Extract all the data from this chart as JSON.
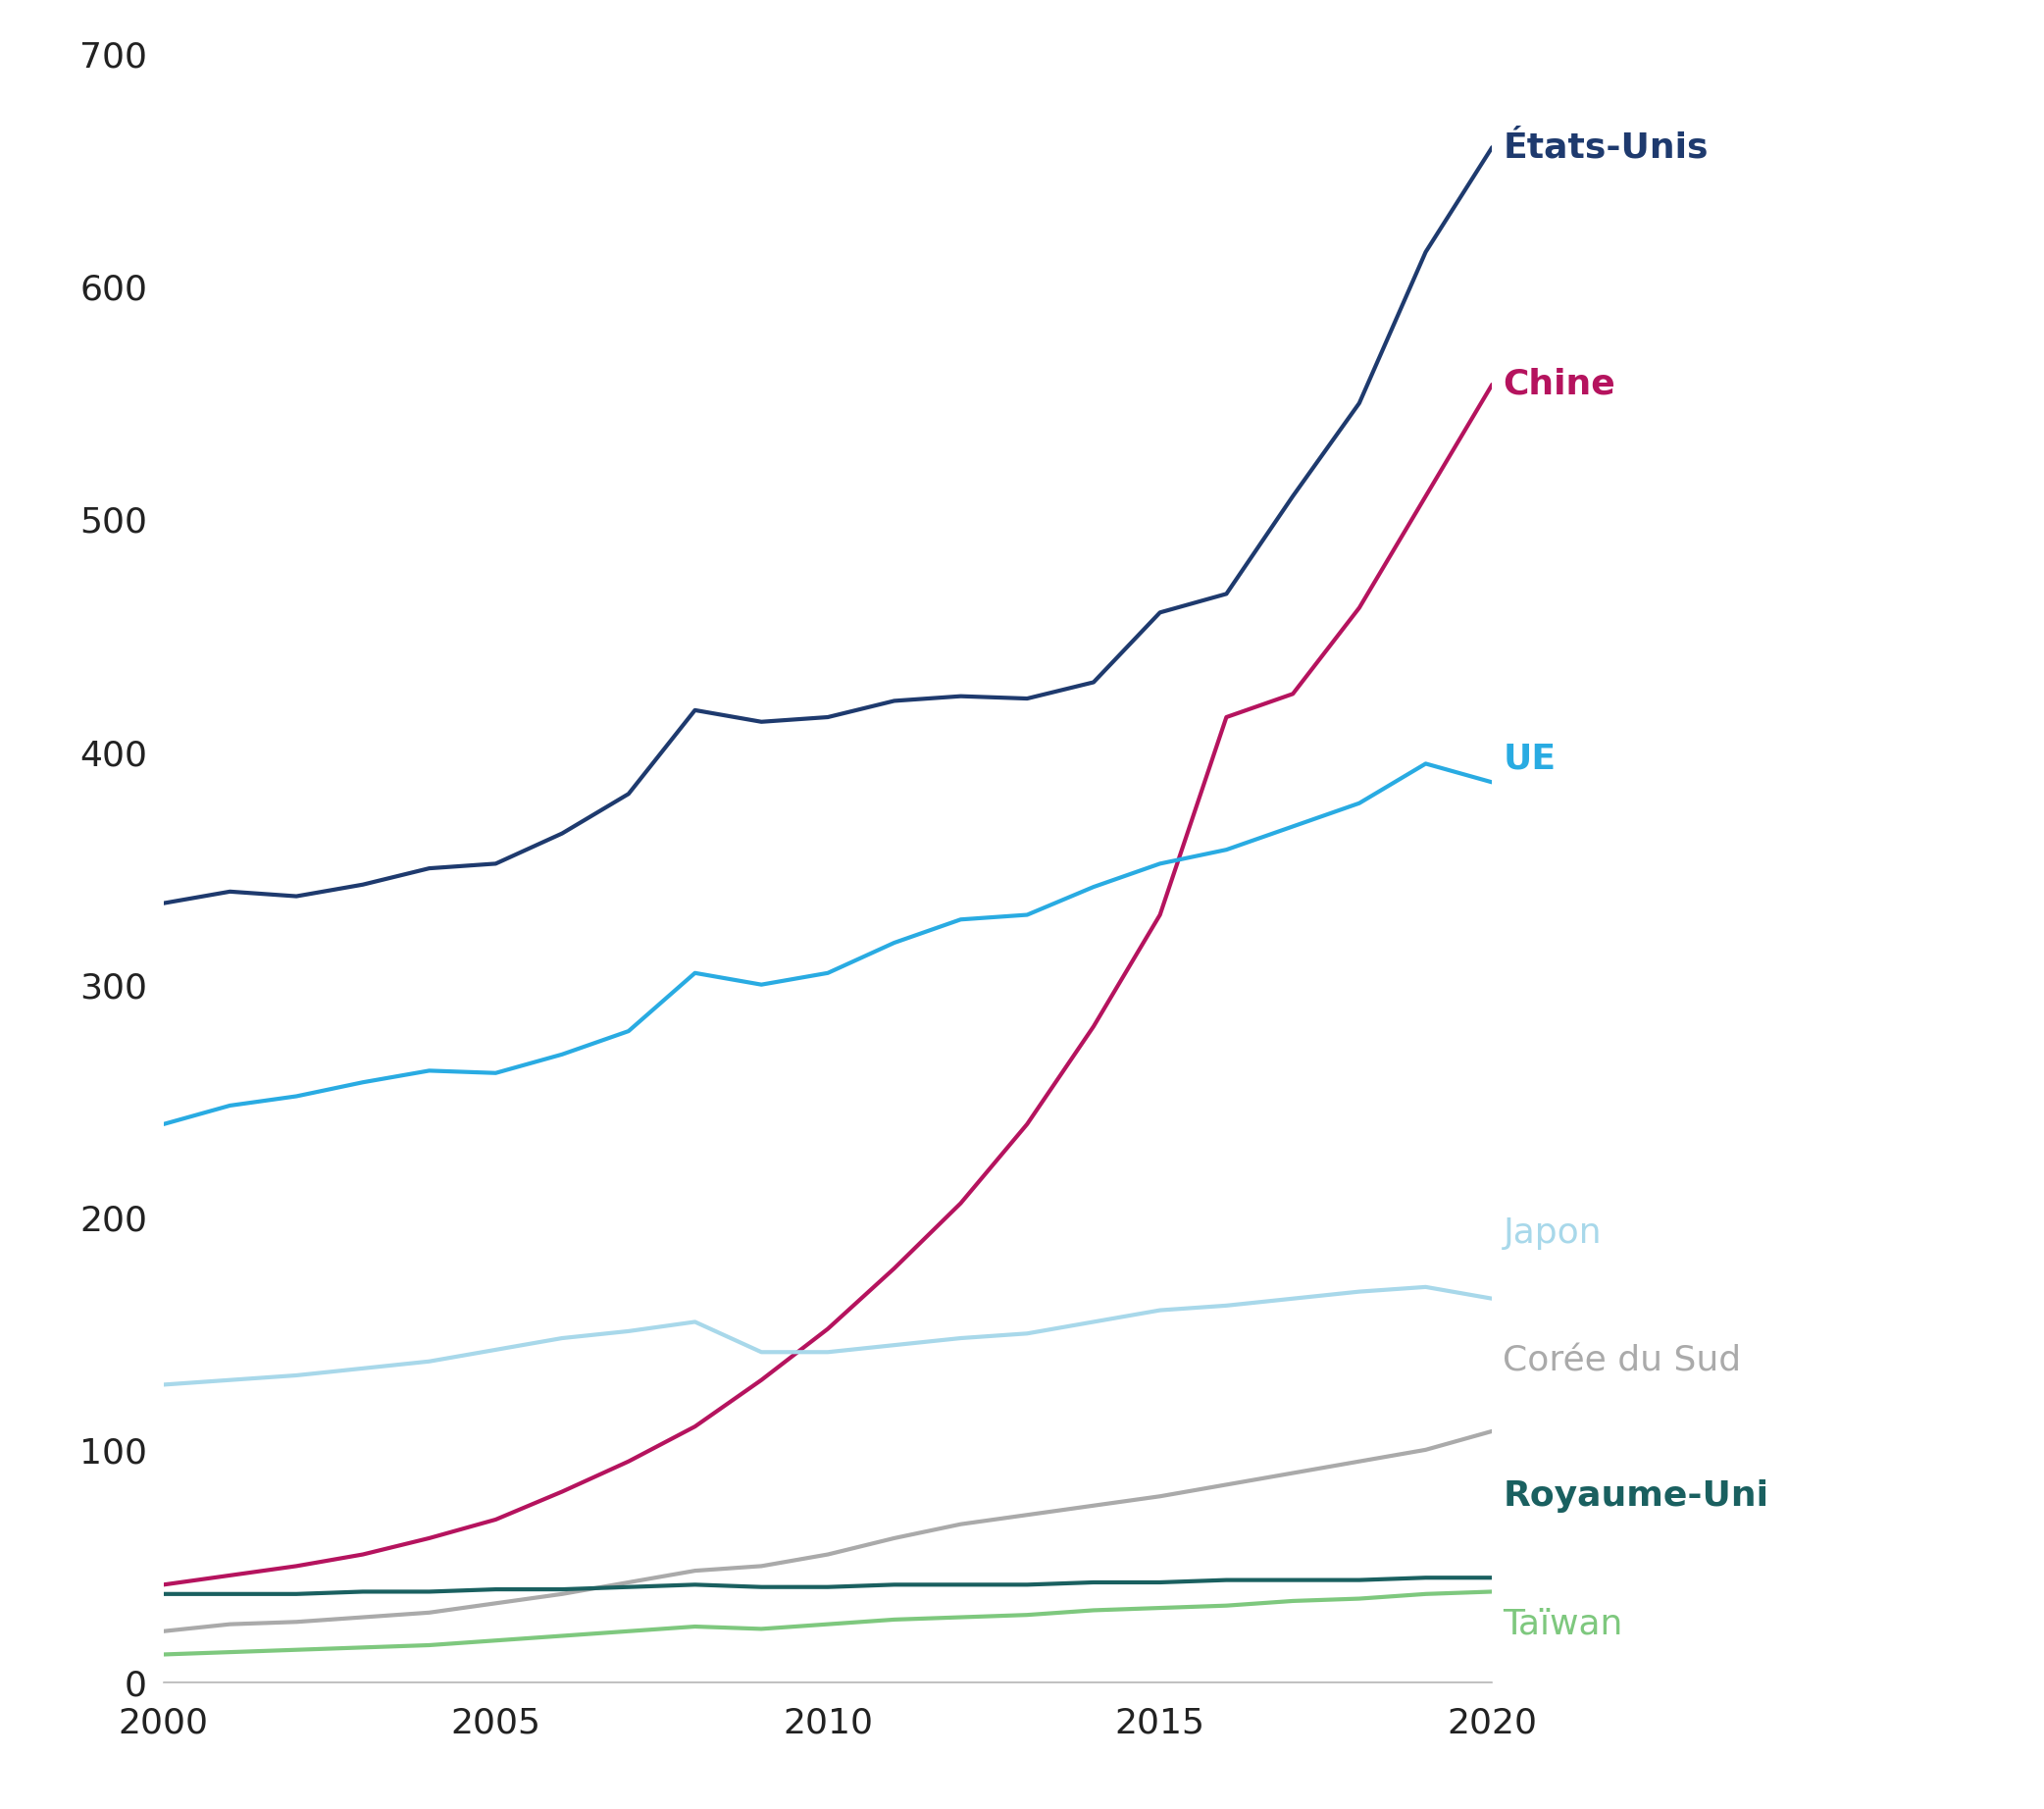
{
  "series": [
    {
      "name": "États-Unis",
      "color": "#1e3a6e",
      "fontweight": "bold",
      "years": [
        2000,
        2001,
        2002,
        2003,
        2004,
        2005,
        2006,
        2007,
        2008,
        2009,
        2010,
        2011,
        2012,
        2013,
        2014,
        2015,
        2016,
        2017,
        2018,
        2019,
        2020
      ],
      "values": [
        335,
        340,
        338,
        343,
        350,
        352,
        365,
        382,
        418,
        413,
        415,
        422,
        424,
        423,
        430,
        460,
        468,
        510,
        550,
        615,
        660
      ]
    },
    {
      "name": "Chine",
      "color": "#b5135e",
      "fontweight": "bold",
      "years": [
        2000,
        2001,
        2002,
        2003,
        2004,
        2005,
        2006,
        2007,
        2008,
        2009,
        2010,
        2011,
        2012,
        2013,
        2014,
        2015,
        2016,
        2017,
        2018,
        2019,
        2020
      ],
      "values": [
        42,
        46,
        50,
        55,
        62,
        70,
        82,
        95,
        110,
        130,
        152,
        178,
        206,
        240,
        282,
        330,
        415,
        425,
        462,
        510,
        558
      ]
    },
    {
      "name": "UE",
      "color": "#29abe2",
      "fontweight": "bold",
      "years": [
        2000,
        2001,
        2002,
        2003,
        2004,
        2005,
        2006,
        2007,
        2008,
        2009,
        2010,
        2011,
        2012,
        2013,
        2014,
        2015,
        2016,
        2017,
        2018,
        2019,
        2020
      ],
      "values": [
        240,
        248,
        252,
        258,
        263,
        262,
        270,
        280,
        305,
        300,
        305,
        318,
        328,
        330,
        342,
        352,
        358,
        368,
        378,
        395,
        387
      ]
    },
    {
      "name": "Japon",
      "color": "#a8d8ea",
      "fontweight": "normal",
      "years": [
        2000,
        2001,
        2002,
        2003,
        2004,
        2005,
        2006,
        2007,
        2008,
        2009,
        2010,
        2011,
        2012,
        2013,
        2014,
        2015,
        2016,
        2017,
        2018,
        2019,
        2020
      ],
      "values": [
        128,
        130,
        132,
        135,
        138,
        143,
        148,
        151,
        155,
        142,
        142,
        145,
        148,
        150,
        155,
        160,
        162,
        165,
        168,
        170,
        165
      ]
    },
    {
      "name": "Corée du Sud",
      "color": "#aaaaaa",
      "fontweight": "normal",
      "years": [
        2000,
        2001,
        2002,
        2003,
        2004,
        2005,
        2006,
        2007,
        2008,
        2009,
        2010,
        2011,
        2012,
        2013,
        2014,
        2015,
        2016,
        2017,
        2018,
        2019,
        2020
      ],
      "values": [
        22,
        25,
        26,
        28,
        30,
        34,
        38,
        43,
        48,
        50,
        55,
        62,
        68,
        72,
        76,
        80,
        85,
        90,
        95,
        100,
        108
      ]
    },
    {
      "name": "Royaume-Uni",
      "color": "#1a6060",
      "fontweight": "bold",
      "years": [
        2000,
        2001,
        2002,
        2003,
        2004,
        2005,
        2006,
        2007,
        2008,
        2009,
        2010,
        2011,
        2012,
        2013,
        2014,
        2015,
        2016,
        2017,
        2018,
        2019,
        2020
      ],
      "values": [
        38,
        38,
        38,
        39,
        39,
        40,
        40,
        41,
        42,
        41,
        41,
        42,
        42,
        42,
        43,
        43,
        44,
        44,
        44,
        45,
        45
      ]
    },
    {
      "name": "Taïwan",
      "color": "#7ec87e",
      "fontweight": "normal",
      "years": [
        2000,
        2001,
        2002,
        2003,
        2004,
        2005,
        2006,
        2007,
        2008,
        2009,
        2010,
        2011,
        2012,
        2013,
        2014,
        2015,
        2016,
        2017,
        2018,
        2019,
        2020
      ],
      "values": [
        12,
        13,
        14,
        15,
        16,
        18,
        20,
        22,
        24,
        23,
        25,
        27,
        28,
        29,
        31,
        32,
        33,
        35,
        36,
        38,
        39
      ]
    }
  ],
  "xlim": [
    2000,
    2020
  ],
  "ylim": [
    0,
    700
  ],
  "yticks": [
    0,
    100,
    200,
    300,
    400,
    500,
    600,
    700
  ],
  "xticks": [
    2000,
    2005,
    2010,
    2015,
    2020
  ],
  "label_positions": {
    "États-Unis": {
      "y": 660,
      "va": "center"
    },
    "Chine": {
      "y": 558,
      "va": "center"
    },
    "UE": {
      "y": 397,
      "va": "center"
    },
    "Japon": {
      "y": 193,
      "va": "center"
    },
    "Corée du Sud": {
      "y": 138,
      "va": "center"
    },
    "Royaume-Uni": {
      "y": 80,
      "va": "center"
    },
    "Taïwan": {
      "y": 25,
      "va": "center"
    }
  },
  "background_color": "#ffffff",
  "line_width": 3.0,
  "label_fontsize": 26,
  "tick_fontsize": 26
}
